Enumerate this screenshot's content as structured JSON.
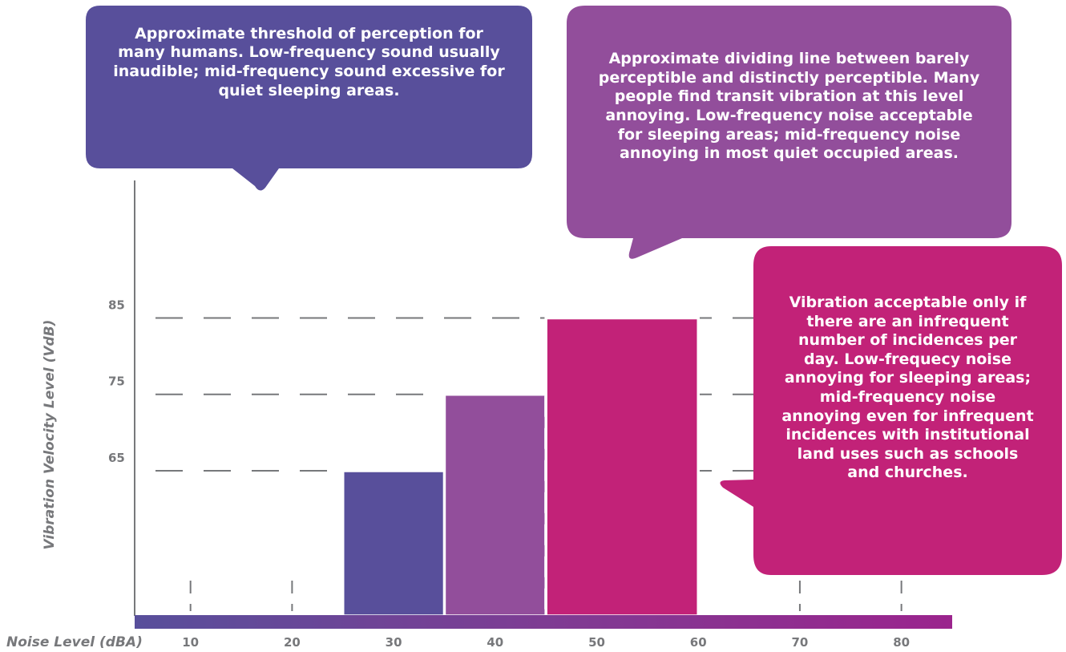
{
  "chart_data": {
    "type": "bar",
    "title": "",
    "xlabel": "Noise Level (dBA)",
    "ylabel": "Vibration Velocity Level (VdB)",
    "x_ticks": [
      10,
      20,
      30,
      40,
      50,
      60,
      70,
      80
    ],
    "y_ticks": [
      65,
      75,
      85
    ],
    "xlim": [
      4.5,
      85
    ],
    "ylim": [
      46,
      103
    ],
    "grid": "dashed horizontal lines at 65, 75, 85 VdB; dashed vertical tick marks at 10-80 dBA",
    "series": [
      {
        "x_range": [
          25,
          40
        ],
        "vibration": 65,
        "inner_dashes_at": [
          35.5
        ],
        "color": "#584f9b"
      },
      {
        "x_range": [
          35,
          50
        ],
        "vibration": 75,
        "inner_dashes_at": [
          45
        ],
        "color": "#924e9b"
      },
      {
        "x_range": [
          45,
          60
        ],
        "vibration": 85,
        "inner_dashes_at": [],
        "color": "#c22278"
      }
    ],
    "annotations": [
      {
        "text": "Approximate threshold of perception for many humans. Low-frequency sound usually inaudible; mid-frequency sound excessive for quiet sleeping  areas.",
        "color": "#584f9b"
      },
      {
        "text": "Approximate dividing line between barely  perceptible and distinctly perceptible. Many people find transit vibration at this level annoying. Low-frequency noise acceptable for sleeping areas; mid-frequency noise annoying in most quiet occupied areas.",
        "color": "#924e9b"
      },
      {
        "text": "Vibration acceptable only if there are an infrequent number of incidences per day. Low-frequecy noise annoying for sleeping areas; mid-frequency noise annoying even for infrequent incidences with institutional land uses such as schools and churches.",
        "color": "#c22278"
      }
    ],
    "x_axis_gradient": [
      "#584f9b",
      "#7e3c93",
      "#9b248d"
    ],
    "legend": "none"
  }
}
